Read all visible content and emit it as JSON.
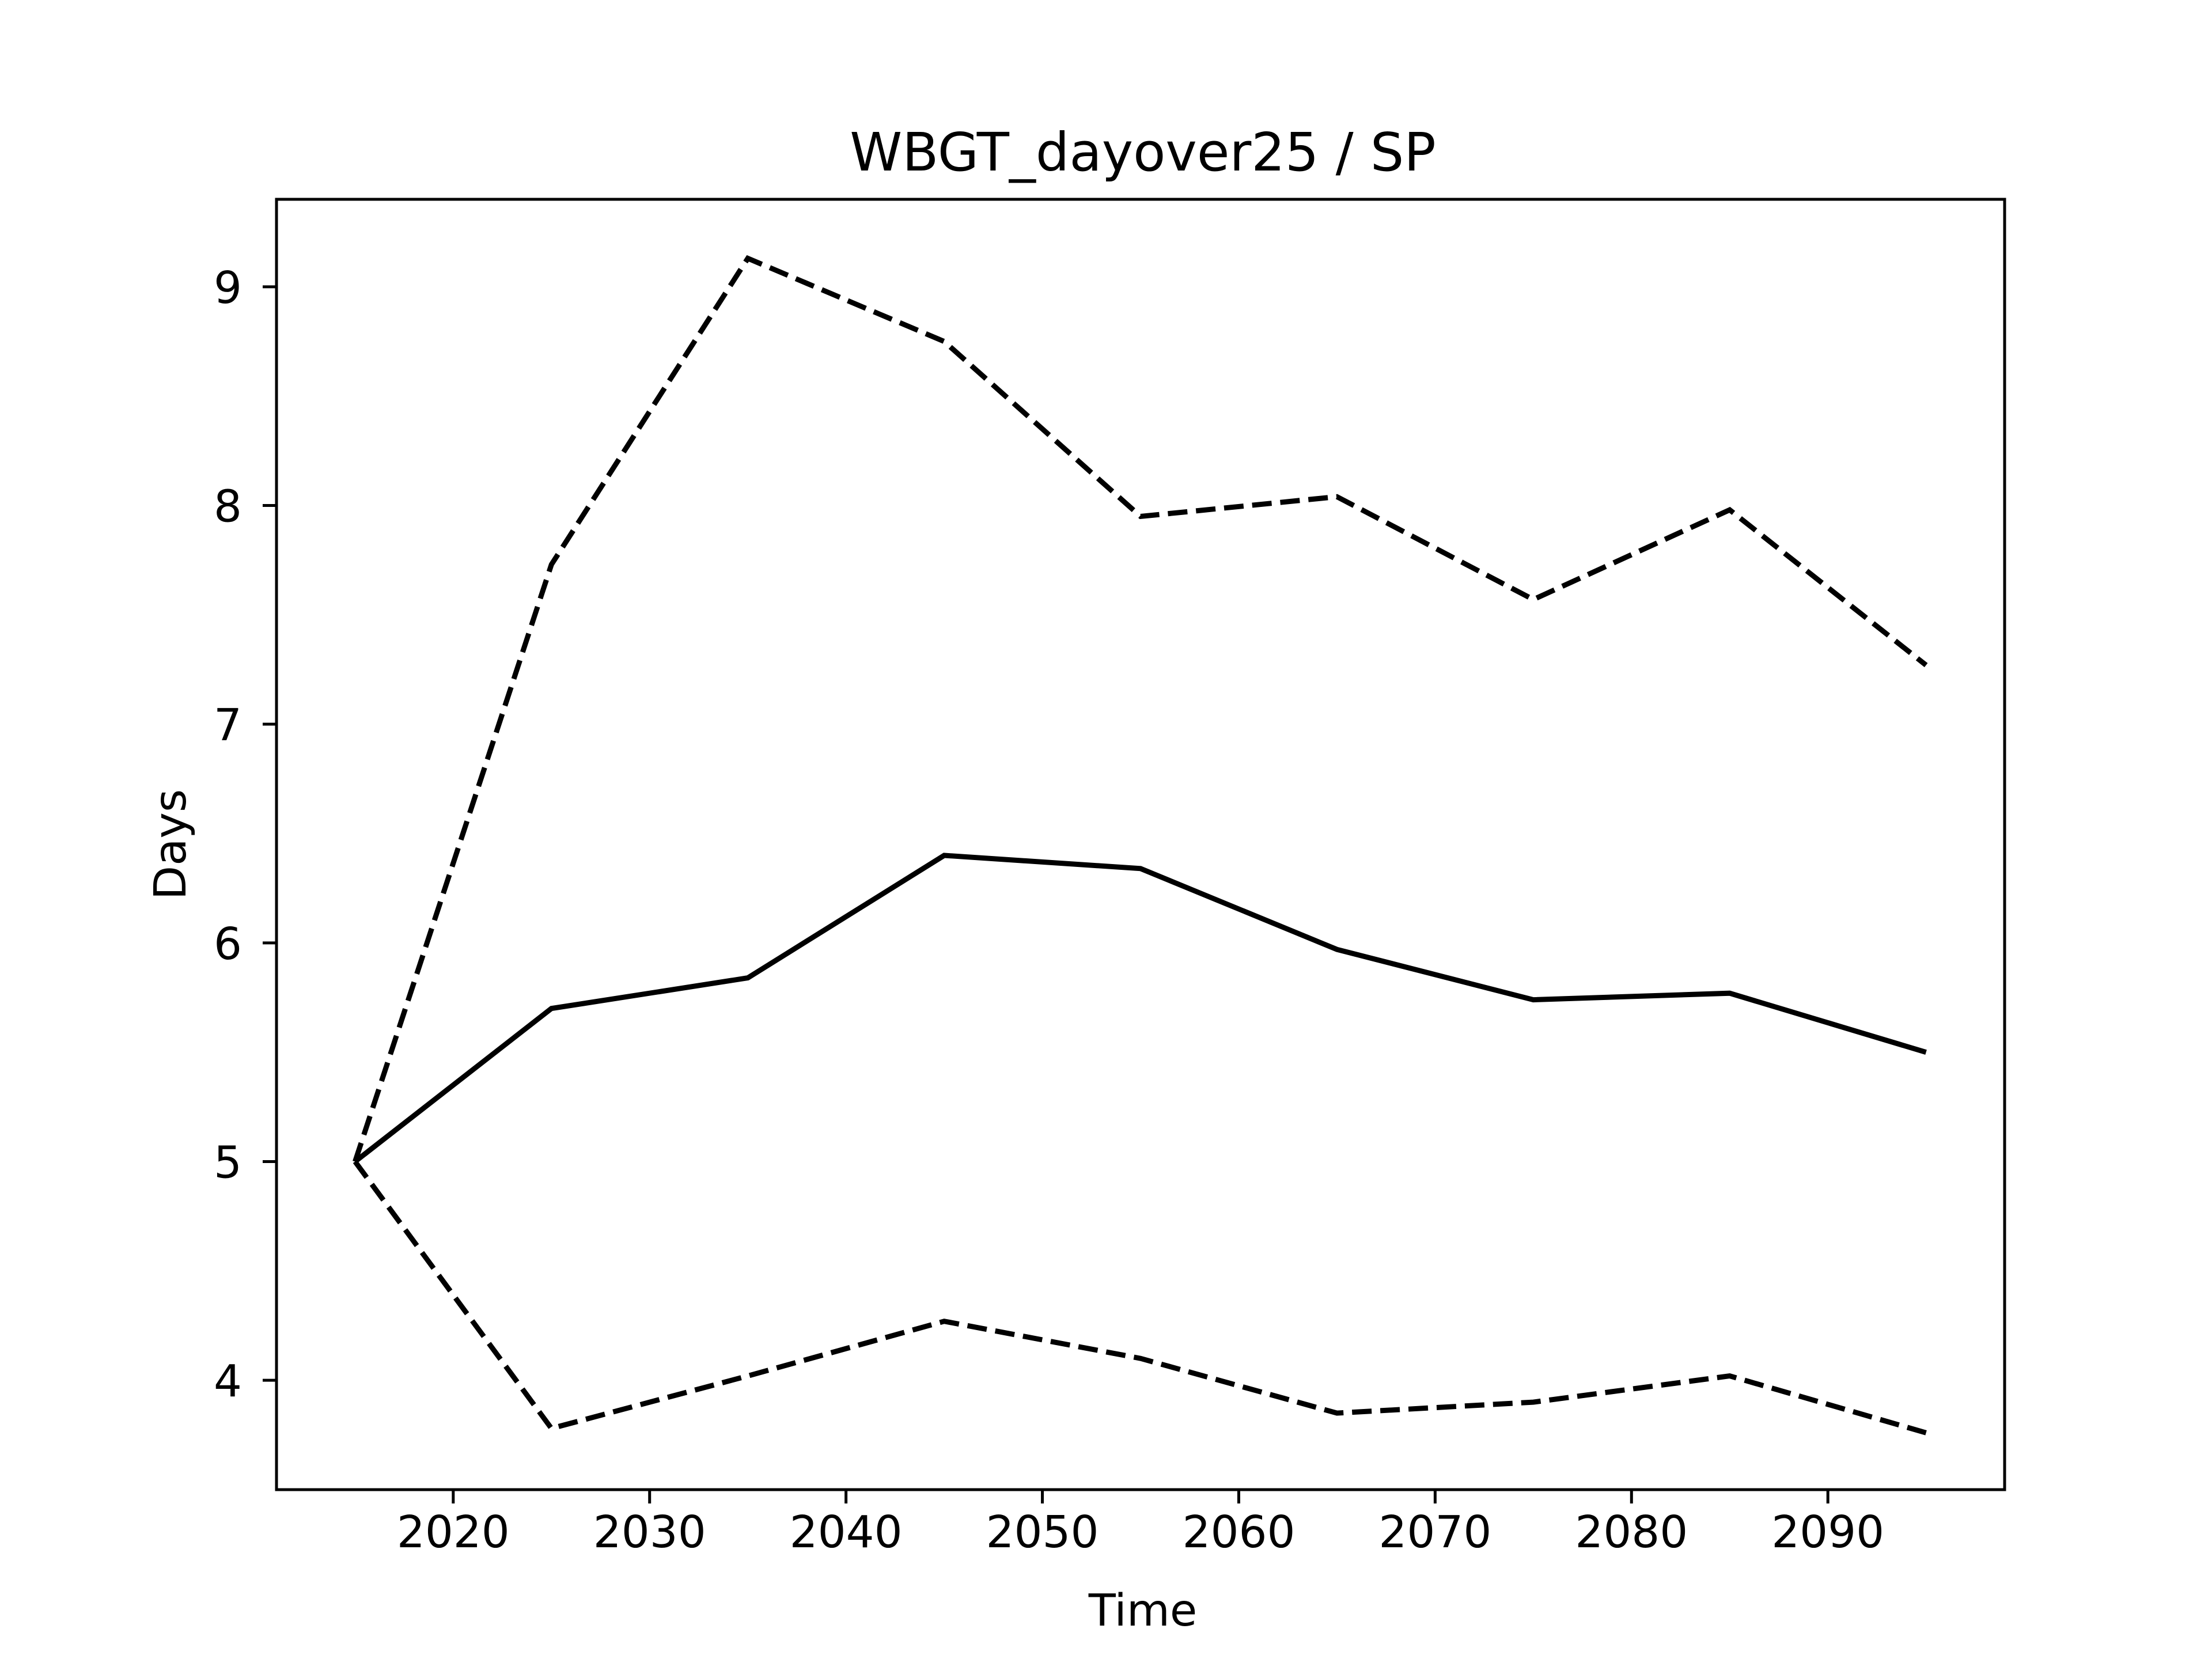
{
  "chart_data": {
    "type": "line",
    "title": "WBGT_dayover25 / SP",
    "xlabel": "Time",
    "ylabel": "Days",
    "xlim": [
      2011,
      2099
    ],
    "ylim": [
      3.5,
      9.4
    ],
    "xticks": [
      2020,
      2030,
      2040,
      2050,
      2060,
      2070,
      2080,
      2090
    ],
    "yticks": [
      4,
      5,
      6,
      7,
      8,
      9
    ],
    "grid": false,
    "legend": "none",
    "x": [
      2015,
      2025,
      2035,
      2045,
      2055,
      2065,
      2075,
      2085,
      2095
    ],
    "series": [
      {
        "style": "solid",
        "color": "#000000",
        "values": [
          5.0,
          5.7,
          5.84,
          6.4,
          6.34,
          5.97,
          5.74,
          5.77,
          5.5
        ]
      },
      {
        "style": "dashed",
        "color": "#000000",
        "values": [
          5.0,
          7.73,
          9.13,
          8.75,
          7.95,
          8.04,
          7.57,
          7.98,
          7.27
        ]
      },
      {
        "style": "dashed",
        "color": "#000000",
        "values": [
          5.0,
          3.78,
          4.02,
          4.27,
          4.1,
          3.85,
          3.9,
          4.02,
          3.76
        ]
      }
    ]
  }
}
